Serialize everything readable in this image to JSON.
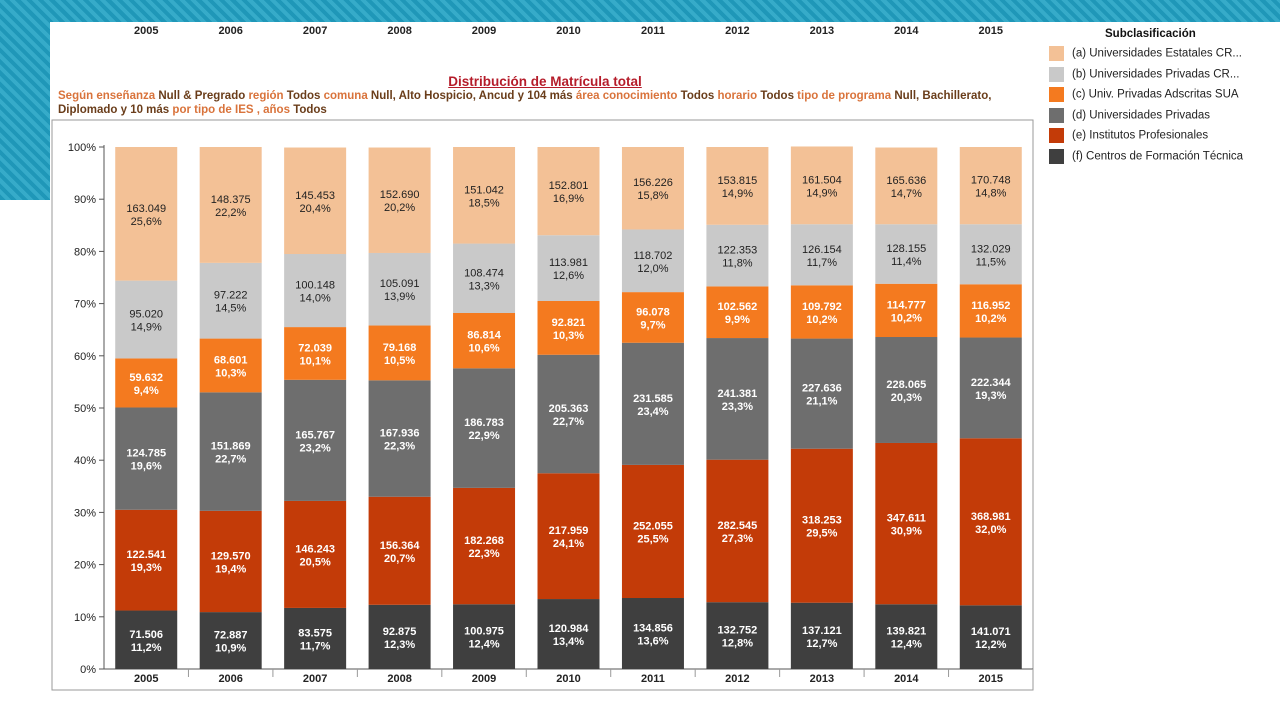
{
  "chart_data": {
    "type": "bar",
    "stacked": true,
    "normalized": true,
    "title": "Distribución de Matrícula total",
    "subtitle_parts": [
      {
        "text": "Según enseñanza ",
        "hl": false
      },
      {
        "text": "Null & Pregrado",
        "hl": true
      },
      {
        "text": " región ",
        "hl": false
      },
      {
        "text": "Todos",
        "hl": true
      },
      {
        "text": " comuna ",
        "hl": false
      },
      {
        "text": "Null, Alto Hospicio, Ancud y 104 más",
        "hl": true
      },
      {
        "text": " área conocimiento ",
        "hl": false
      },
      {
        "text": "Todos",
        "hl": true
      },
      {
        "text": " horario ",
        "hl": false
      },
      {
        "text": "Todos",
        "hl": true
      },
      {
        "text": " tipo de programa ",
        "hl": false
      },
      {
        "text": "Null, Bachillerato, Diplomado y 10 más",
        "hl": true
      },
      {
        "text": " por tipo de IES , años ",
        "hl": false
      },
      {
        "text": "Todos",
        "hl": true
      }
    ],
    "categories": [
      "2005",
      "2006",
      "2007",
      "2008",
      "2009",
      "2010",
      "2011",
      "2012",
      "2013",
      "2014",
      "2015"
    ],
    "y_ticks": [
      "0%",
      "10%",
      "20%",
      "30%",
      "40%",
      "50%",
      "60%",
      "70%",
      "80%",
      "90%",
      "100%"
    ],
    "ylim": [
      0,
      100
    ],
    "legend": {
      "title": "Subclasificación",
      "position": "top-right"
    },
    "series": [
      {
        "key": "f",
        "name": "(f) Centros de Formación Técnica",
        "color": "#3f3f3f",
        "label_color": "#ffffff",
        "values": [
          71506,
          72887,
          83575,
          92875,
          100975,
          120984,
          134856,
          132752,
          137121,
          139821,
          141071
        ],
        "percent": [
          11.2,
          10.9,
          11.7,
          12.3,
          12.4,
          13.4,
          13.6,
          12.8,
          12.7,
          12.4,
          12.2
        ],
        "labels": [
          "71.506",
          "72.887",
          "83.575",
          "92.875",
          "100.975",
          "120.984",
          "134.856",
          "132.752",
          "137.121",
          "139.821",
          "141.071"
        ],
        "pct_labels": [
          "11,2%",
          "10,9%",
          "11,7%",
          "12,3%",
          "12,4%",
          "13,4%",
          "13,6%",
          "12,8%",
          "12,7%",
          "12,4%",
          "12,2%"
        ]
      },
      {
        "key": "e",
        "name": "(e) Institutos Profesionales",
        "color": "#c33b08",
        "label_color": "#ffffff",
        "values": [
          122541,
          129570,
          146243,
          156364,
          182268,
          217959,
          252055,
          282545,
          318253,
          347611,
          368981
        ],
        "percent": [
          19.3,
          19.4,
          20.5,
          20.7,
          22.3,
          24.1,
          25.5,
          27.3,
          29.5,
          30.9,
          32.0
        ],
        "labels": [
          "122.541",
          "129.570",
          "146.243",
          "156.364",
          "182.268",
          "217.959",
          "252.055",
          "282.545",
          "318.253",
          "347.611",
          "368.981"
        ],
        "pct_labels": [
          "19,3%",
          "19,4%",
          "20,5%",
          "20,7%",
          "22,3%",
          "24,1%",
          "25,5%",
          "27,3%",
          "29,5%",
          "30,9%",
          "32,0%"
        ]
      },
      {
        "key": "d",
        "name": "(d) Universidades Privadas",
        "color": "#6e6e6e",
        "label_color": "#ffffff",
        "values": [
          124785,
          151869,
          165767,
          167936,
          186783,
          205363,
          231585,
          241381,
          227636,
          228065,
          222344
        ],
        "percent": [
          19.6,
          22.7,
          23.2,
          22.3,
          22.9,
          22.7,
          23.4,
          23.3,
          21.1,
          20.3,
          19.3
        ],
        "labels": [
          "124.785",
          "151.869",
          "165.767",
          "167.936",
          "186.783",
          "205.363",
          "231.585",
          "241.381",
          "227.636",
          "228.065",
          "222.344"
        ],
        "pct_labels": [
          "19,6%",
          "22,7%",
          "23,2%",
          "22,3%",
          "22,9%",
          "22,7%",
          "23,4%",
          "23,3%",
          "21,1%",
          "20,3%",
          "19,3%"
        ]
      },
      {
        "key": "c",
        "name": "(c) Univ. Privadas Adscritas SUA",
        "color": "#f47a1f",
        "label_color": "#ffffff",
        "values": [
          59632,
          68601,
          72039,
          79168,
          86814,
          92821,
          96078,
          102562,
          109792,
          114777,
          116952
        ],
        "percent": [
          9.4,
          10.3,
          10.1,
          10.5,
          10.6,
          10.3,
          9.7,
          9.9,
          10.2,
          10.2,
          10.2
        ],
        "labels": [
          "59.632",
          "68.601",
          "72.039",
          "79.168",
          "86.814",
          "92.821",
          "96.078",
          "102.562",
          "109.792",
          "114.777",
          "116.952"
        ],
        "pct_labels": [
          "9,4%",
          "10,3%",
          "10,1%",
          "10,5%",
          "10,6%",
          "10,3%",
          "9,7%",
          "9,9%",
          "10,2%",
          "10,2%",
          "10,2%"
        ]
      },
      {
        "key": "b",
        "name": "(b) Universidades Privadas CR...",
        "color": "#c9c9c9",
        "label_color": "#222222",
        "values": [
          95020,
          97222,
          100148,
          105091,
          108474,
          113981,
          118702,
          122353,
          126154,
          128155,
          132029
        ],
        "percent": [
          14.9,
          14.5,
          14.0,
          13.9,
          13.3,
          12.6,
          12.0,
          11.8,
          11.7,
          11.4,
          11.5
        ],
        "labels": [
          "95.020",
          "97.222",
          "100.148",
          "105.091",
          "108.474",
          "113.981",
          "118.702",
          "122.353",
          "126.154",
          "128.155",
          "132.029"
        ],
        "pct_labels": [
          "14,9%",
          "14,5%",
          "14,0%",
          "13,9%",
          "13,3%",
          "12,6%",
          "12,0%",
          "11,8%",
          "11,7%",
          "11,4%",
          "11,5%"
        ]
      },
      {
        "key": "a",
        "name": "(a) Universidades Estatales CR...",
        "color": "#f3c196",
        "label_color": "#222222",
        "values": [
          163049,
          148375,
          145453,
          152690,
          151042,
          152801,
          156226,
          153815,
          161504,
          165636,
          170748
        ],
        "percent": [
          25.6,
          22.2,
          20.4,
          20.2,
          18.5,
          16.9,
          15.8,
          14.9,
          14.9,
          14.7,
          14.8
        ],
        "labels": [
          "163.049",
          "148.375",
          "145.453",
          "152.690",
          "151.042",
          "152.801",
          "156.226",
          "153.815",
          "161.504",
          "165.636",
          "170.748"
        ],
        "pct_labels": [
          "25,6%",
          "22,2%",
          "20,4%",
          "20,2%",
          "18,5%",
          "16,9%",
          "15,8%",
          "14,9%",
          "14,9%",
          "14,7%",
          "14,8%"
        ]
      }
    ]
  }
}
